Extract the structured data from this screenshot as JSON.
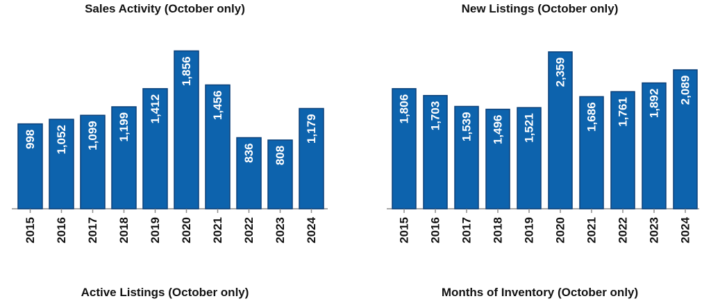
{
  "colors": {
    "bar": "#0d63ad",
    "bar_border": "#0a3f78",
    "axis": "#8c8c8c",
    "label": "#ffffff",
    "text": "#111111"
  },
  "chart_data": [
    {
      "type": "bar",
      "title": "Sales Activity (October only)",
      "categories": [
        "2015",
        "2016",
        "2017",
        "2018",
        "2019",
        "2020",
        "2021",
        "2022",
        "2023",
        "2024"
      ],
      "values": [
        998,
        1052,
        1099,
        1199,
        1412,
        1856,
        1456,
        836,
        808,
        1179
      ],
      "value_labels": [
        "998",
        "1,052",
        "1,099",
        "1,199",
        "1,412",
        "1,856",
        "1,456",
        "836",
        "808",
        "1,179"
      ],
      "ylim": [
        0,
        1900
      ],
      "grid": false
    },
    {
      "type": "bar",
      "title": "New Listings (October only)",
      "categories": [
        "2015",
        "2016",
        "2017",
        "2018",
        "2019",
        "2020",
        "2021",
        "2022",
        "2023",
        "2024"
      ],
      "values": [
        1806,
        1703,
        1539,
        1496,
        1521,
        2359,
        1686,
        1761,
        1892,
        2089
      ],
      "value_labels": [
        "1,806",
        "1,703",
        "1,539",
        "1,496",
        "1,521",
        "2,359",
        "1,686",
        "1,761",
        "1,892",
        "2,089"
      ],
      "ylim": [
        0,
        2430
      ],
      "grid": false
    }
  ],
  "next_charts": [
    {
      "title": "Active Listings (October only)"
    },
    {
      "title": "Months of Inventory (October only)"
    }
  ]
}
